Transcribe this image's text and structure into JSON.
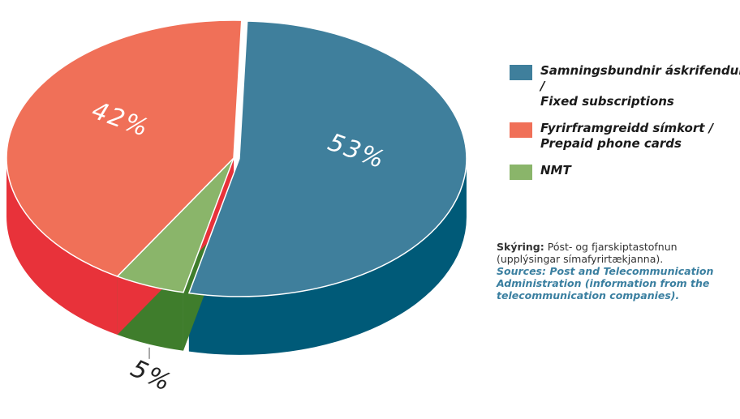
{
  "chart_data": {
    "type": "pie",
    "three_d": true,
    "series": [
      {
        "name": "Samningsbundnir áskrifendur /\nFixed subscriptions",
        "color": "#3f7f9c",
        "side_color": "#005a78",
        "values": [
          53
        ],
        "value_labels": [
          "53%"
        ]
      },
      {
        "name": "NMT",
        "color": "#8ab56a",
        "side_color": "#3f7d2c",
        "values": [
          5
        ],
        "value_labels": [
          "5%"
        ]
      },
      {
        "name": "Fyrirframgreidd símkort /\nPrepaid phone cards",
        "color": "#f07058",
        "side_color": "#e8323a",
        "values": [
          42
        ],
        "value_labels": [
          "42%"
        ]
      }
    ],
    "legend_order": [
      0,
      2,
      1
    ],
    "note_label": "Skýring:",
    "note_text": "Póst- og fjarskiptastofnun (upplýsingar símafyrirtækjanna).",
    "source": "Sources: Post and Telecommunication Administration (information from the telecommunication companies)."
  }
}
